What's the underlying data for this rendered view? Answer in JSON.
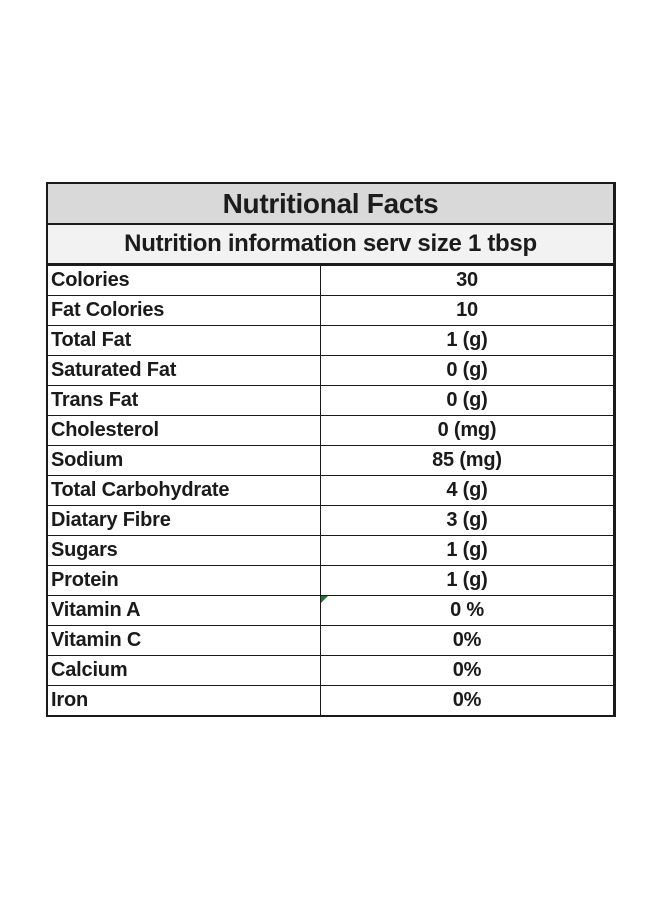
{
  "table": {
    "title": "Nutritional Facts",
    "subtitle": "Nutrition information serv size 1 tbsp",
    "rows": [
      {
        "label": "Colories",
        "value": "30"
      },
      {
        "label": "Fat Colories",
        "value": "10"
      },
      {
        "label": "Total Fat",
        "value": "1 (g)"
      },
      {
        "label": "Saturated Fat",
        "value": "0 (g)"
      },
      {
        "label": "Trans Fat",
        "value": "0 (g)"
      },
      {
        "label": "Cholesterol",
        "value": "0 (mg)"
      },
      {
        "label": "Sodium",
        "value": "85 (mg)"
      },
      {
        "label": "Total Carbohydrate",
        "value": "4 (g)"
      },
      {
        "label": "Diatary Fibre",
        "value": "3 (g)"
      },
      {
        "label": "Sugars",
        "value": "1 (g)"
      },
      {
        "label": "Protein",
        "value": "1 (g)"
      },
      {
        "label": "Vitamin A",
        "value": "0 %"
      },
      {
        "label": "Vitamin C",
        "value": "0%"
      },
      {
        "label": "Calcium",
        "value": "0%"
      },
      {
        "label": "Iron",
        "value": "0%"
      }
    ],
    "comment_marker_color": "#1f7a2e"
  }
}
